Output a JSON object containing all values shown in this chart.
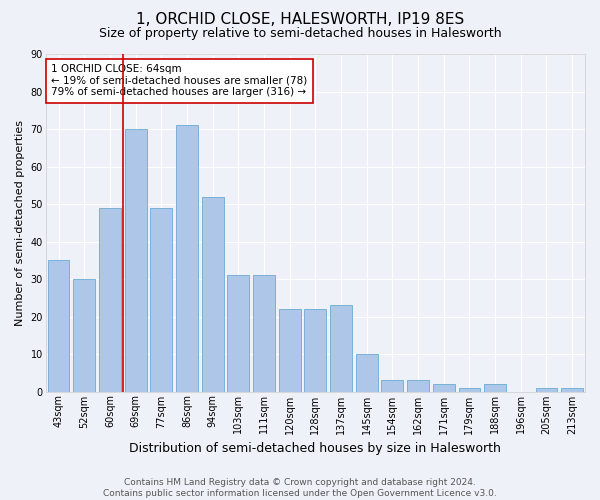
{
  "title": "1, ORCHID CLOSE, HALESWORTH, IP19 8ES",
  "subtitle": "Size of property relative to semi-detached houses in Halesworth",
  "xlabel": "Distribution of semi-detached houses by size in Halesworth",
  "ylabel": "Number of semi-detached properties",
  "categories": [
    "43sqm",
    "52sqm",
    "60sqm",
    "69sqm",
    "77sqm",
    "86sqm",
    "94sqm",
    "103sqm",
    "111sqm",
    "120sqm",
    "128sqm",
    "137sqm",
    "145sqm",
    "154sqm",
    "162sqm",
    "171sqm",
    "179sqm",
    "188sqm",
    "196sqm",
    "205sqm",
    "213sqm"
  ],
  "values": [
    35,
    30,
    49,
    70,
    49,
    71,
    52,
    31,
    31,
    22,
    22,
    23,
    10,
    3,
    3,
    2,
    1,
    2,
    0,
    1,
    1
  ],
  "bar_color": "#aec6e8",
  "bar_edge_color": "#6aaad4",
  "vline_x_index": 3,
  "vline_color": "#cc0000",
  "annotation_text": "1 ORCHID CLOSE: 64sqm\n← 19% of semi-detached houses are smaller (78)\n79% of semi-detached houses are larger (316) →",
  "annotation_box_color": "#ffffff",
  "annotation_box_edge": "#cc0000",
  "ylim": [
    0,
    90
  ],
  "yticks": [
    0,
    10,
    20,
    30,
    40,
    50,
    60,
    70,
    80,
    90
  ],
  "footer": "Contains HM Land Registry data © Crown copyright and database right 2024.\nContains public sector information licensed under the Open Government Licence v3.0.",
  "bg_color": "#eef2f8",
  "grid_color": "#ffffff",
  "title_fontsize": 11,
  "subtitle_fontsize": 9,
  "xlabel_fontsize": 9,
  "ylabel_fontsize": 8,
  "tick_fontsize": 7,
  "annotation_fontsize": 7.5,
  "footer_fontsize": 6.5
}
